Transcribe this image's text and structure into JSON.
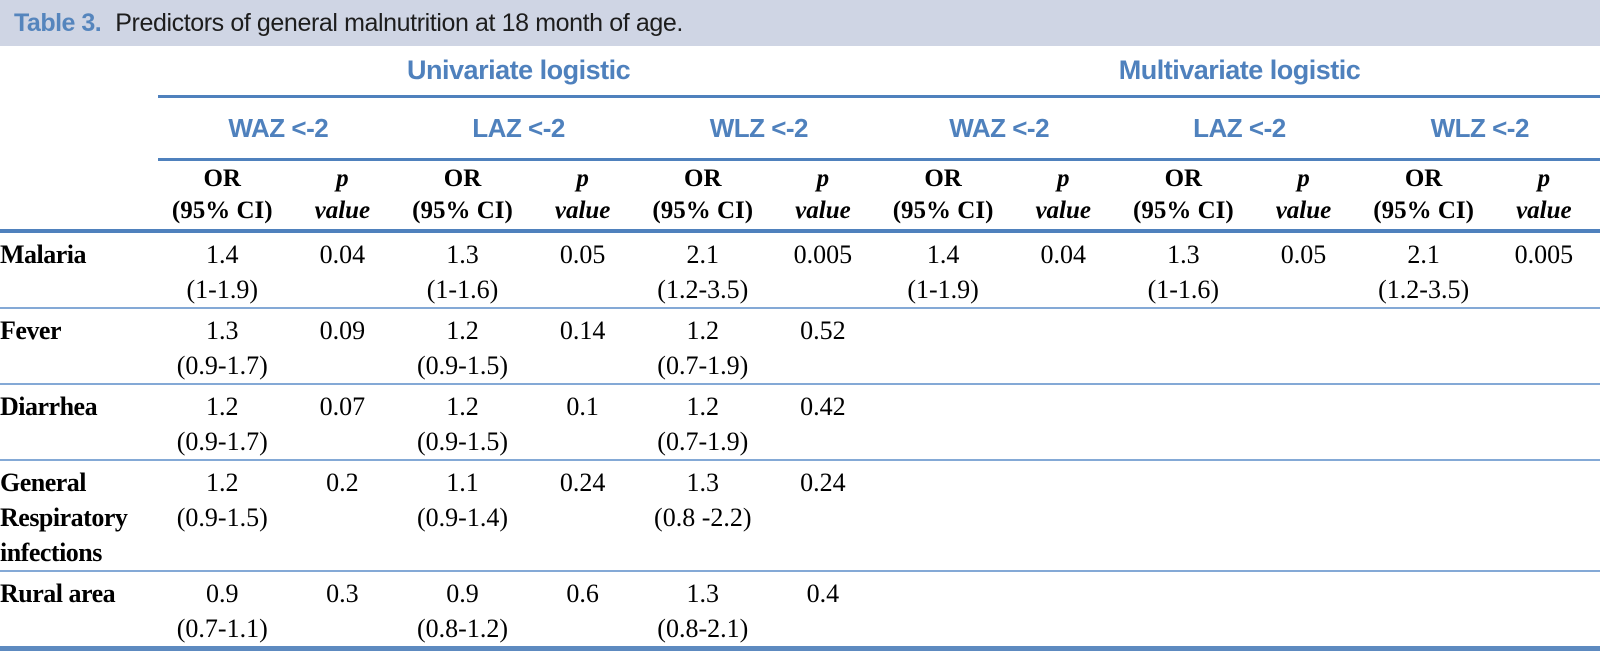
{
  "caption": {
    "label": "Table 3.",
    "text": "Predictors of general malnutrition at 18 month of age."
  },
  "colors": {
    "accent_blue": "#4f81bd",
    "light_rule_blue": "#84a9d6",
    "caption_bg": "#cfd5e4",
    "caption_label_blue": "#5585bd"
  },
  "header": {
    "groups": {
      "univariate": "Univariate logistic",
      "multivariate": "Multivariate logistic"
    },
    "subgroups": {
      "waz": "WAZ <-2",
      "laz": "LAZ <-2",
      "wlz": "WLZ <-2"
    },
    "or_line1": "OR",
    "or_line2": "(95% CI)",
    "p_line1": "p",
    "p_line2": "value"
  },
  "rows": [
    {
      "label": "Malaria",
      "cells": [
        {
          "or": "1.4",
          "ci": "(1-1.9)",
          "p": "0.04"
        },
        {
          "or": "1.3",
          "ci": "(1-1.6)",
          "p": "0.05"
        },
        {
          "or": "2.1",
          "ci": "(1.2-3.5)",
          "p": "0.005"
        },
        {
          "or": "1.4",
          "ci": "(1-1.9)",
          "p": "0.04"
        },
        {
          "or": "1.3",
          "ci": "(1-1.6)",
          "p": "0.05"
        },
        {
          "or": "2.1",
          "ci": "(1.2-3.5)",
          "p": "0.005"
        }
      ]
    },
    {
      "label": "Fever",
      "cells": [
        {
          "or": "1.3",
          "ci": "(0.9-1.7)",
          "p": "0.09"
        },
        {
          "or": "1.2",
          "ci": "(0.9-1.5)",
          "p": "0.14"
        },
        {
          "or": "1.2",
          "ci": "(0.7-1.9)",
          "p": "0.52"
        },
        {
          "or": "",
          "ci": "",
          "p": ""
        },
        {
          "or": "",
          "ci": "",
          "p": ""
        },
        {
          "or": "",
          "ci": "",
          "p": ""
        }
      ]
    },
    {
      "label": "Diarrhea",
      "cells": [
        {
          "or": "1.2",
          "ci": "(0.9-1.7)",
          "p": "0.07"
        },
        {
          "or": "1.2",
          "ci": "(0.9-1.5)",
          "p": "0.1"
        },
        {
          "or": "1.2",
          "ci": "(0.7-1.9)",
          "p": "0.42"
        },
        {
          "or": "",
          "ci": "",
          "p": ""
        },
        {
          "or": "",
          "ci": "",
          "p": ""
        },
        {
          "or": "",
          "ci": "",
          "p": ""
        }
      ]
    },
    {
      "label": "General Respiratory infections",
      "cells": [
        {
          "or": "1.2",
          "ci": "(0.9-1.5)",
          "p": "0.2"
        },
        {
          "or": "1.1",
          "ci": "(0.9-1.4)",
          "p": "0.24"
        },
        {
          "or": "1.3",
          "ci": "(0.8 -2.2)",
          "p": "0.24"
        },
        {
          "or": "",
          "ci": "",
          "p": ""
        },
        {
          "or": "",
          "ci": "",
          "p": ""
        },
        {
          "or": "",
          "ci": "",
          "p": ""
        }
      ]
    },
    {
      "label": "Rural area",
      "cells": [
        {
          "or": "0.9",
          "ci": "(0.7-1.1)",
          "p": "0.3"
        },
        {
          "or": "0.9",
          "ci": "(0.8-1.2)",
          "p": "0.6"
        },
        {
          "or": "1.3",
          "ci": "(0.8-2.1)",
          "p": "0.4"
        },
        {
          "or": "",
          "ci": "",
          "p": ""
        },
        {
          "or": "",
          "ci": "",
          "p": ""
        },
        {
          "or": "",
          "ci": "",
          "p": ""
        }
      ]
    }
  ]
}
